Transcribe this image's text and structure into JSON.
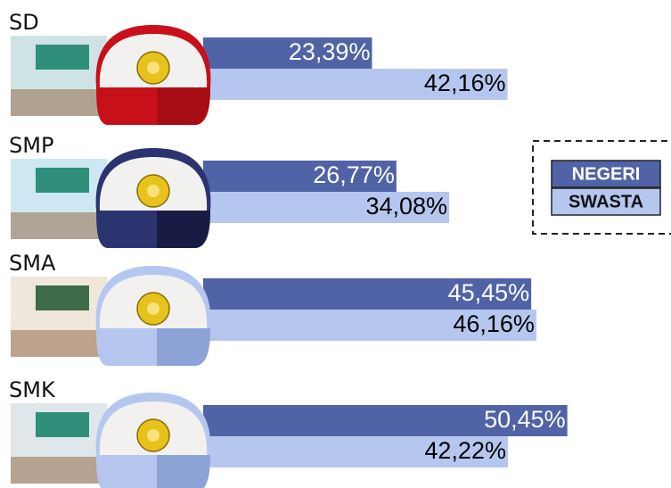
{
  "chart_data": {
    "type": "bar",
    "orientation": "horizontal",
    "categories": [
      "SD",
      "SMP",
      "SMA",
      "SMK"
    ],
    "series": [
      {
        "name": "NEGERI",
        "color": "#5063a6",
        "values": [
          23.39,
          26.77,
          45.45,
          50.45
        ],
        "value_labels": [
          "23,39%",
          "26,77%",
          "45,45%",
          "50,45%"
        ]
      },
      {
        "name": "SWASTA",
        "color": "#b6c7ef",
        "values": [
          42.16,
          34.08,
          46.16,
          42.22
        ],
        "value_labels": [
          "42,16%",
          "34,08%",
          "46,16%",
          "42,22%"
        ]
      }
    ],
    "legend": "right"
  }
}
